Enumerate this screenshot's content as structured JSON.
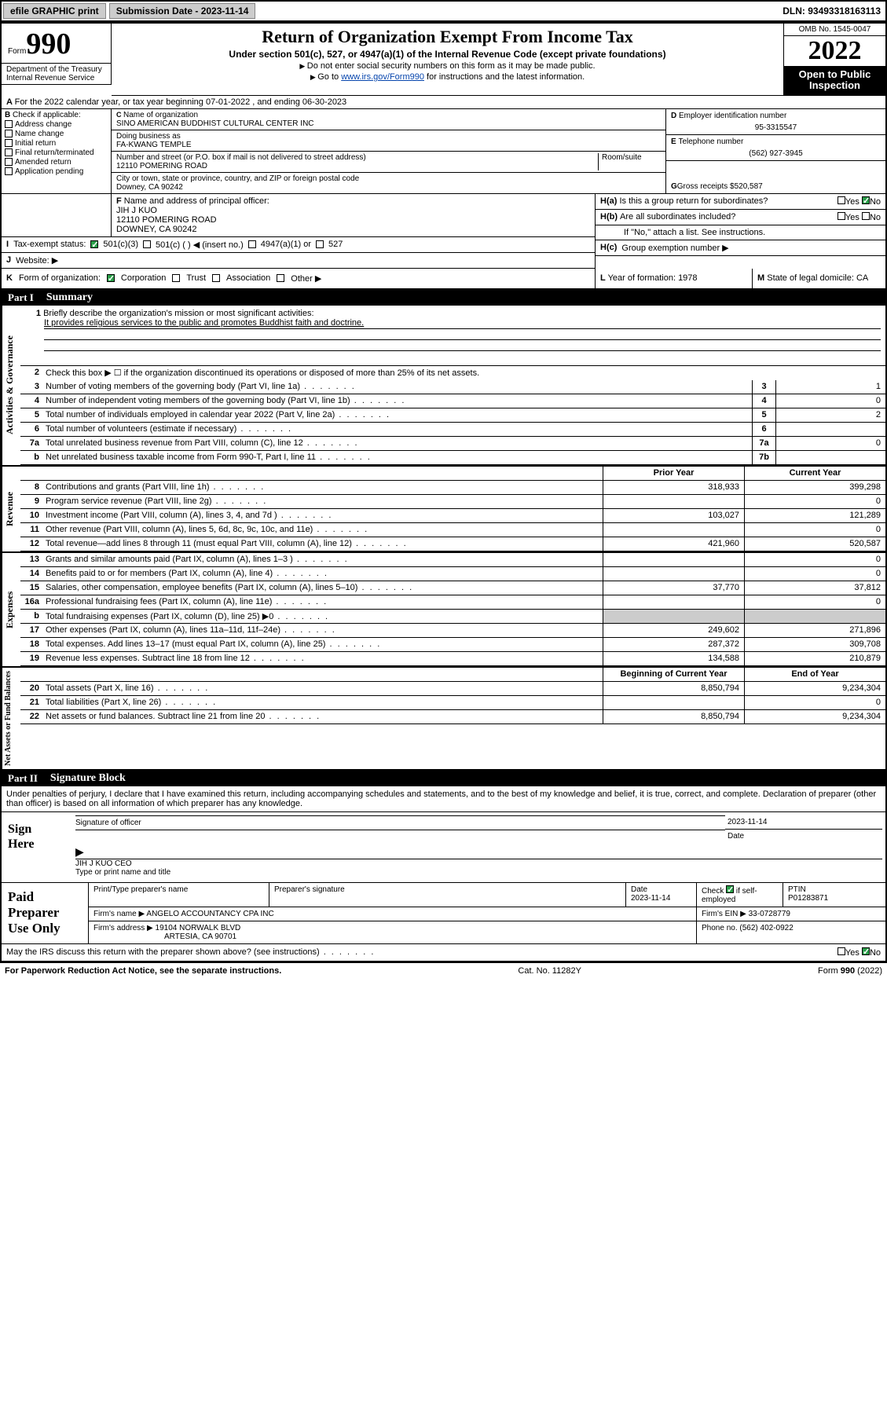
{
  "topbar": {
    "efile": "efile GRAPHIC print",
    "submission_label": "Submission Date - 2023-11-14",
    "dln": "DLN: 93493318163113"
  },
  "header": {
    "form_word": "Form",
    "form_number": "990",
    "title": "Return of Organization Exempt From Income Tax",
    "subtitle": "Under section 501(c), 527, or 4947(a)(1) of the Internal Revenue Code (except private foundations)",
    "line1": "Do not enter social security numbers on this form as it may be made public.",
    "line2_pre": "Go to ",
    "line2_link": "www.irs.gov/Form990",
    "line2_post": " for instructions and the latest information.",
    "dept": "Department of the Treasury\nInternal Revenue Service",
    "omb": "OMB No. 1545-0047",
    "year": "2022",
    "inspection": "Open to Public Inspection"
  },
  "A": {
    "text": "For the 2022 calendar year, or tax year beginning 07-01-2022    , and ending 06-30-2023"
  },
  "B": {
    "label": "Check if applicable:",
    "items": [
      "Address change",
      "Name change",
      "Initial return",
      "Final return/terminated",
      "Amended return",
      "Application pending"
    ]
  },
  "C": {
    "name_label": "Name of organization",
    "name": "SINO AMERICAN BUDDHIST CULTURAL CENTER INC",
    "dba_label": "Doing business as",
    "dba": "FA-KWANG TEMPLE",
    "street_label": "Number and street (or P.O. box if mail is not delivered to street address)",
    "room_label": "Room/suite",
    "street": "12110 POMERING ROAD",
    "city_label": "City or town, state or province, country, and ZIP or foreign postal code",
    "city": "Downey, CA  90242"
  },
  "D": {
    "label": "Employer identification number",
    "value": "95-3315547"
  },
  "E": {
    "label": "Telephone number",
    "value": "(562) 927-3945"
  },
  "G": {
    "label": "Gross receipts $",
    "value": "520,587"
  },
  "F": {
    "label": "Name and address of principal officer:",
    "name": "JIH J KUO",
    "addr1": "12110 POMERING ROAD",
    "addr2": "DOWNEY, CA  90242"
  },
  "H": {
    "a": "Is this a group return for subordinates?",
    "b": "Are all subordinates included?",
    "b_note": "If \"No,\" attach a list. See instructions.",
    "c": "Group exemption number ▶"
  },
  "I": {
    "label": "Tax-exempt status:",
    "opts": [
      "501(c)(3)",
      "501(c) (  ) ◀ (insert no.)",
      "4947(a)(1) or",
      "527"
    ]
  },
  "J": {
    "label": "Website: ▶"
  },
  "K": {
    "label": "Form of organization:",
    "opts": [
      "Corporation",
      "Trust",
      "Association",
      "Other ▶"
    ]
  },
  "L": {
    "label": "Year of formation:",
    "value": "1978"
  },
  "M": {
    "label": "State of legal domicile:",
    "value": "CA"
  },
  "part1": {
    "label": "Part I",
    "title": "Summary",
    "q1_label": "Briefly describe the organization's mission or most significant activities:",
    "q1_text": "It provides religious services to the public and promotes Buddhist faith and doctrine.",
    "q2": "Check this box ▶ ☐  if the organization discontinued its operations or disposed of more than 25% of its net assets.",
    "rows_gov": [
      {
        "n": "3",
        "desc": "Number of voting members of the governing body (Part VI, line 1a)",
        "box": "3",
        "val": "1"
      },
      {
        "n": "4",
        "desc": "Number of independent voting members of the governing body (Part VI, line 1b)",
        "box": "4",
        "val": "0"
      },
      {
        "n": "5",
        "desc": "Total number of individuals employed in calendar year 2022 (Part V, line 2a)",
        "box": "5",
        "val": "2"
      },
      {
        "n": "6",
        "desc": "Total number of volunteers (estimate if necessary)",
        "box": "6",
        "val": ""
      },
      {
        "n": "7a",
        "desc": "Total unrelated business revenue from Part VIII, column (C), line 12",
        "box": "7a",
        "val": "0"
      },
      {
        "n": "b",
        "desc": "Net unrelated business taxable income from Form 990-T, Part I, line 11",
        "box": "7b",
        "val": ""
      }
    ],
    "col_prior": "Prior Year",
    "col_current": "Current Year",
    "rows_rev": [
      {
        "n": "8",
        "desc": "Contributions and grants (Part VIII, line 1h)",
        "prior": "318,933",
        "current": "399,298"
      },
      {
        "n": "9",
        "desc": "Program service revenue (Part VIII, line 2g)",
        "prior": "",
        "current": "0"
      },
      {
        "n": "10",
        "desc": "Investment income (Part VIII, column (A), lines 3, 4, and 7d )",
        "prior": "103,027",
        "current": "121,289"
      },
      {
        "n": "11",
        "desc": "Other revenue (Part VIII, column (A), lines 5, 6d, 8c, 9c, 10c, and 11e)",
        "prior": "",
        "current": "0"
      },
      {
        "n": "12",
        "desc": "Total revenue—add lines 8 through 11 (must equal Part VIII, column (A), line 12)",
        "prior": "421,960",
        "current": "520,587"
      }
    ],
    "rows_exp": [
      {
        "n": "13",
        "desc": "Grants and similar amounts paid (Part IX, column (A), lines 1–3 )",
        "prior": "",
        "current": "0"
      },
      {
        "n": "14",
        "desc": "Benefits paid to or for members (Part IX, column (A), line 4)",
        "prior": "",
        "current": "0"
      },
      {
        "n": "15",
        "desc": "Salaries, other compensation, employee benefits (Part IX, column (A), lines 5–10)",
        "prior": "37,770",
        "current": "37,812"
      },
      {
        "n": "16a",
        "desc": "Professional fundraising fees (Part IX, column (A), line 11e)",
        "prior": "",
        "current": "0"
      },
      {
        "n": "b",
        "desc": "Total fundraising expenses (Part IX, column (D), line 25) ▶0",
        "prior": "SHADED",
        "current": "SHADED"
      },
      {
        "n": "17",
        "desc": "Other expenses (Part IX, column (A), lines 11a–11d, 11f–24e)",
        "prior": "249,602",
        "current": "271,896"
      },
      {
        "n": "18",
        "desc": "Total expenses. Add lines 13–17 (must equal Part IX, column (A), line 25)",
        "prior": "287,372",
        "current": "309,708"
      },
      {
        "n": "19",
        "desc": "Revenue less expenses. Subtract line 18 from line 12",
        "prior": "134,588",
        "current": "210,879"
      }
    ],
    "col_begin": "Beginning of Current Year",
    "col_end": "End of Year",
    "rows_net": [
      {
        "n": "20",
        "desc": "Total assets (Part X, line 16)",
        "prior": "8,850,794",
        "current": "9,234,304"
      },
      {
        "n": "21",
        "desc": "Total liabilities (Part X, line 26)",
        "prior": "",
        "current": "0"
      },
      {
        "n": "22",
        "desc": "Net assets or fund balances. Subtract line 21 from line 20",
        "prior": "8,850,794",
        "current": "9,234,304"
      }
    ]
  },
  "tabs": {
    "gov": "Activities & Governance",
    "rev": "Revenue",
    "exp": "Expenses",
    "net": "Net Assets or Fund Balances"
  },
  "part2": {
    "label": "Part II",
    "title": "Signature Block",
    "declaration": "Under penalties of perjury, I declare that I have examined this return, including accompanying schedules and statements, and to the best of my knowledge and belief, it is true, correct, and complete. Declaration of preparer (other than officer) is based on all information of which preparer has any knowledge."
  },
  "sign": {
    "label": "Sign Here",
    "sig_label": "Signature of officer",
    "date_label": "Date",
    "date": "2023-11-14",
    "name": "JIH J KUO CEO",
    "name_label": "Type or print name and title"
  },
  "preparer": {
    "label": "Paid Preparer Use Only",
    "h_name": "Print/Type preparer's name",
    "h_sig": "Preparer's signature",
    "h_date": "Date",
    "date": "2023-11-14",
    "h_check": "Check ☑ if self-employed",
    "h_ptin": "PTIN",
    "ptin": "P01283871",
    "firm_name_label": "Firm's name    ▶",
    "firm_name": "ANGELO ACCOUNTANCY CPA INC",
    "firm_ein_label": "Firm's EIN ▶",
    "firm_ein": "33-0728779",
    "firm_addr_label": "Firm's address ▶",
    "firm_addr": "19104 NORWALK BLVD",
    "firm_city": "ARTESIA, CA  90701",
    "phone_label": "Phone no.",
    "phone": "(562) 402-0922"
  },
  "footer": {
    "discuss": "May the IRS discuss this return with the preparer shown above? (see instructions)",
    "paperwork": "For Paperwork Reduction Act Notice, see the separate instructions.",
    "cat": "Cat. No. 11282Y",
    "form": "Form 990 (2022)"
  },
  "yesno": {
    "yes": "Yes",
    "no": "No"
  }
}
